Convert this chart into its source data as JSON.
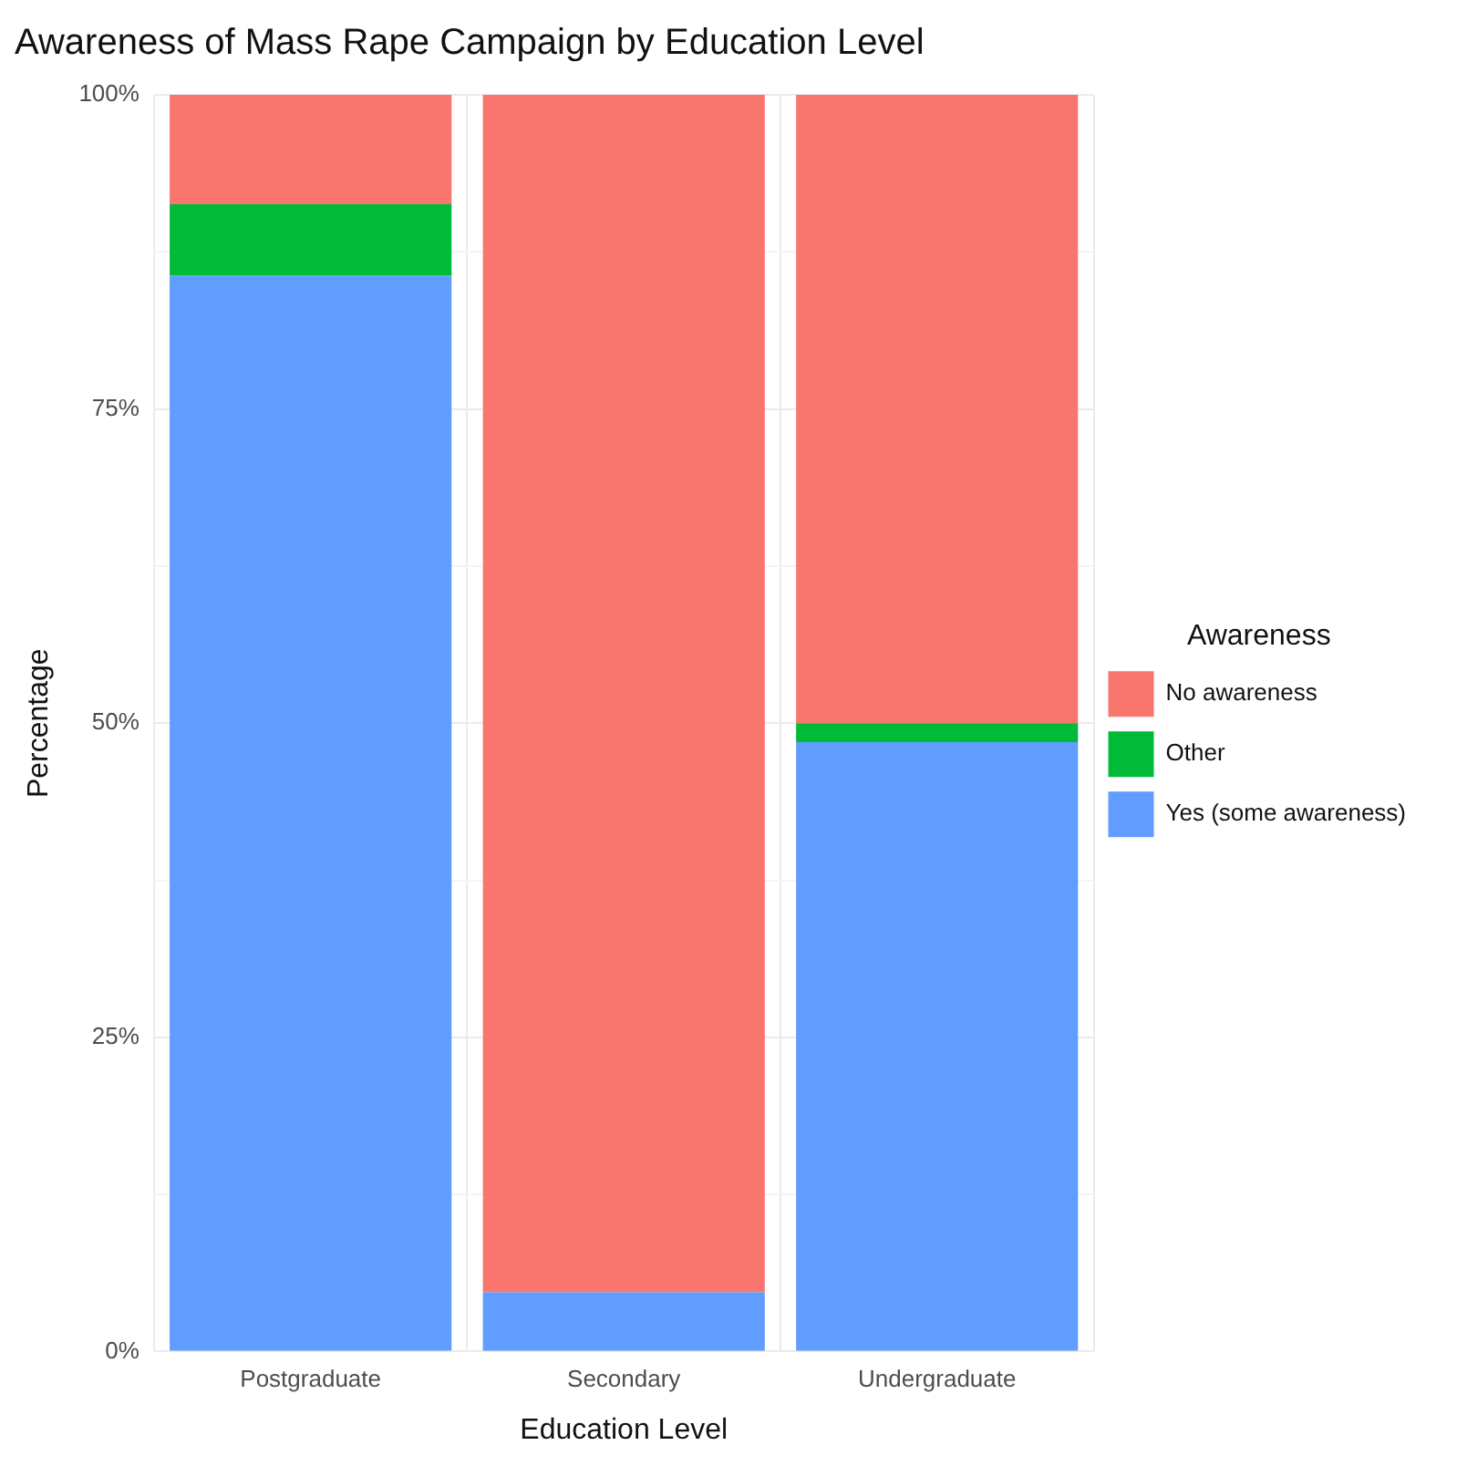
{
  "chart_data": {
    "type": "bar",
    "title": "Awareness of Mass Rape Campaign by Education Level",
    "xlabel": "Education Level",
    "ylabel": "Percentage",
    "legend_title": "Awareness",
    "categories": [
      "Postgraduate",
      "Secondary",
      "Undergraduate"
    ],
    "series": [
      {
        "name": "Yes (some awareness)",
        "color": "#619cff",
        "values": [
          85.6,
          4.7,
          48.5
        ]
      },
      {
        "name": "Other",
        "color": "#00ba38",
        "values": [
          5.7,
          0,
          1.5
        ]
      },
      {
        "name": "No awareness",
        "color": "#f8766d",
        "values": [
          8.7,
          95.3,
          50.0
        ]
      }
    ],
    "stacked": true,
    "ylim": [
      0,
      100
    ],
    "yticks": [
      {
        "value": 0,
        "label": "0%"
      },
      {
        "value": 12.5,
        "label": null
      },
      {
        "value": 25,
        "label": "25%"
      },
      {
        "value": 37.5,
        "label": null
      },
      {
        "value": 50,
        "label": "50%"
      },
      {
        "value": 62.5,
        "label": null
      },
      {
        "value": 75,
        "label": "75%"
      },
      {
        "value": 87.5,
        "label": null
      },
      {
        "value": 100,
        "label": "100%"
      }
    ],
    "grid": true,
    "legend": "right"
  }
}
